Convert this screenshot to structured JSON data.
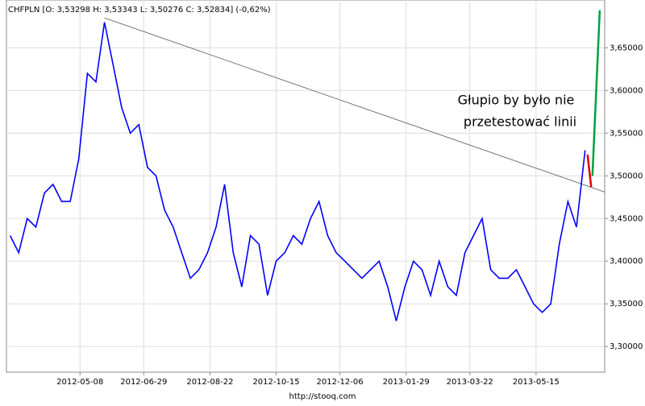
{
  "chart_data": {
    "type": "line",
    "title": "CHFPLN [O: 3,53298  H: 3,53343  L: 3,50276  C: 3,52834] (-0,62%)",
    "annotation": [
      "Głupio by było nie",
      "przetestować linii"
    ],
    "footer": "http://stooq.com",
    "x": [
      "2012-03-12",
      "2012-03-19",
      "2012-03-26",
      "2012-04-02",
      "2012-04-09",
      "2012-04-16",
      "2012-04-23",
      "2012-04-30",
      "2012-05-07",
      "2012-05-14",
      "2012-05-21",
      "2012-05-28",
      "2012-06-04",
      "2012-06-11",
      "2012-06-18",
      "2012-06-25",
      "2012-07-02",
      "2012-07-09",
      "2012-07-16",
      "2012-07-23",
      "2012-07-30",
      "2012-08-06",
      "2012-08-13",
      "2012-08-20",
      "2012-08-27",
      "2012-09-03",
      "2012-09-10",
      "2012-09-17",
      "2012-09-24",
      "2012-10-01",
      "2012-10-08",
      "2012-10-15",
      "2012-10-22",
      "2012-10-29",
      "2012-11-05",
      "2012-11-12",
      "2012-11-19",
      "2012-11-26",
      "2012-12-03",
      "2012-12-10",
      "2012-12-17",
      "2012-12-24",
      "2012-12-31",
      "2013-01-07",
      "2013-01-14",
      "2013-01-21",
      "2013-01-28",
      "2013-02-04",
      "2013-02-11",
      "2013-02-18",
      "2013-02-25",
      "2013-03-04",
      "2013-03-11",
      "2013-03-18",
      "2013-03-25",
      "2013-04-01",
      "2013-04-08",
      "2013-04-15",
      "2013-04-22",
      "2013-04-29",
      "2013-05-06",
      "2013-05-13",
      "2013-05-20",
      "2013-05-27",
      "2013-06-03",
      "2013-06-10",
      "2013-06-17",
      "2013-06-24"
    ],
    "series": [
      {
        "color": "#0000ff",
        "values": [
          3.43,
          3.41,
          3.45,
          3.44,
          3.48,
          3.49,
          3.47,
          3.47,
          3.52,
          3.62,
          3.61,
          3.68,
          3.63,
          3.58,
          3.55,
          3.56,
          3.51,
          3.5,
          3.46,
          3.44,
          3.41,
          3.38,
          3.39,
          3.41,
          3.44,
          3.49,
          3.41,
          3.37,
          3.43,
          3.42,
          3.36,
          3.4,
          3.41,
          3.43,
          3.42,
          3.45,
          3.47,
          3.43,
          3.41,
          3.4,
          3.39,
          3.38,
          3.39,
          3.4,
          3.37,
          3.33,
          3.37,
          3.4,
          3.39,
          3.36,
          3.4,
          3.37,
          3.36,
          3.41,
          3.43,
          3.45,
          3.39,
          3.38,
          3.38,
          3.39,
          3.37,
          3.35,
          3.34,
          3.35,
          3.42,
          3.47,
          3.44,
          3.53
        ]
      }
    ],
    "drawings": [
      {
        "color": "#555555",
        "x": [
          "2012-05-28",
          "2013-07-10"
        ],
        "values": [
          3.685,
          3.481
        ]
      },
      {
        "color": "#e00000",
        "x": [
          "2013-06-26",
          "2013-06-29"
        ],
        "values": [
          3.525,
          3.487
        ]
      },
      {
        "color": "#00a040",
        "x": [
          "2013-06-30",
          "2013-07-06"
        ],
        "values": [
          3.5,
          3.694
        ]
      }
    ],
    "xlim": [
      "2012-03-09",
      "2013-07-10"
    ],
    "xticks": [
      "2012-05-08",
      "2012-06-29",
      "2012-08-22",
      "2012-10-15",
      "2012-12-06",
      "2013-01-29",
      "2013-03-22",
      "2013-05-15"
    ],
    "ylim": [
      3.27,
      3.706
    ],
    "yticks": [
      {
        "value": 3.3,
        "label": "3,30000"
      },
      {
        "value": 3.35,
        "label": "3,35000"
      },
      {
        "value": 3.4,
        "label": "3,40000"
      },
      {
        "value": 3.45,
        "label": "3,45000"
      },
      {
        "value": 3.5,
        "label": "3,50000"
      },
      {
        "value": 3.55,
        "label": "3,55000"
      },
      {
        "value": 3.6,
        "label": "3,60000"
      },
      {
        "value": 3.65,
        "label": "3,65000"
      }
    ],
    "grid": true
  }
}
